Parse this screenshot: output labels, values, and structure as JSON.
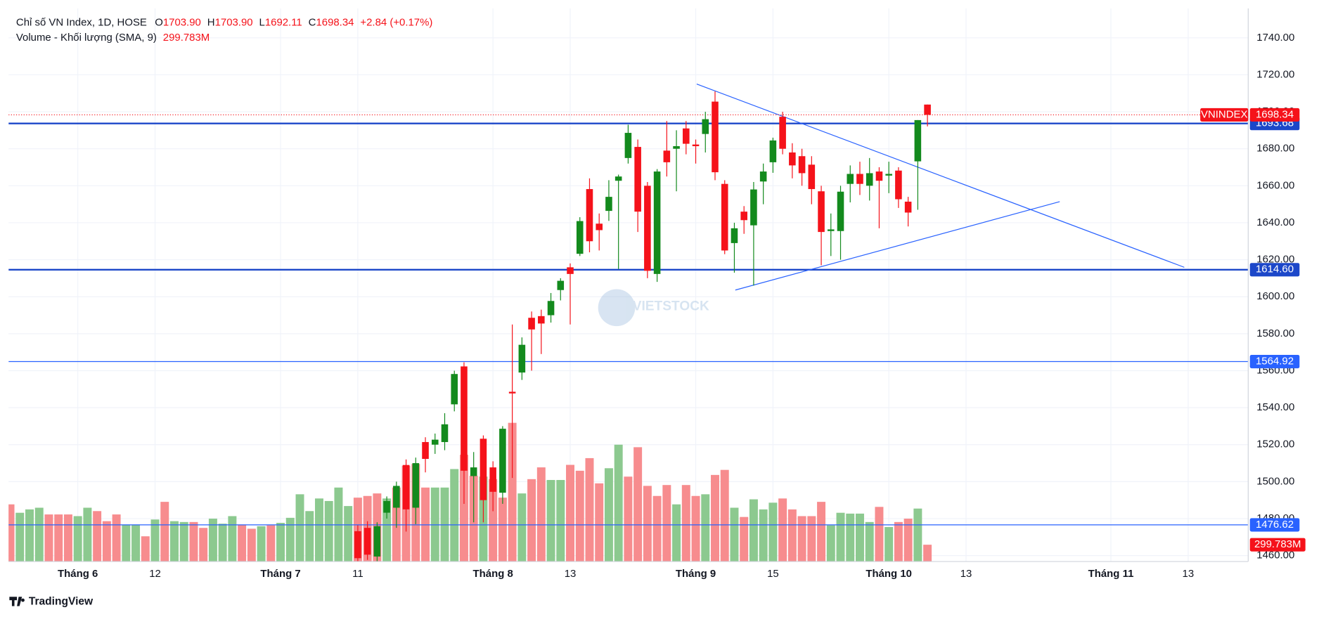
{
  "header": {
    "title": "Chỉ số VN Index, 1D, HOSE",
    "o_label": "O",
    "open": "1703.90",
    "h_label": "H",
    "high": "1703.90",
    "l_label": "L",
    "low": "1692.11",
    "c_label": "C",
    "close": "1698.34",
    "change": "+2.84 (+0.17%)",
    "volume_title": "Volume - Khối lượng (SMA, 9)",
    "volume_value": "299.783M"
  },
  "watermark": "VIETSTOCK",
  "footer": "TradingView",
  "chart_data": {
    "type": "candlestick",
    "symbol": "VNINDEX",
    "up_color": "#138a1d",
    "down_color": "#f5121a",
    "volume_up_color": "#8cc98f",
    "volume_down_color": "#f78c8e",
    "open": [
      null,
      null,
      null,
      null,
      null,
      null,
      null,
      null,
      null,
      null,
      null,
      null,
      null,
      null,
      null,
      null,
      null,
      null,
      null,
      null,
      null,
      null,
      null,
      null,
      null,
      null,
      null,
      null,
      null,
      null,
      null,
      null,
      null,
      null,
      null,
      null,
      1473.2,
      1475,
      1459.5,
      1483.2,
      1485.9,
      1509,
      1485.9,
      1521.4,
      1520,
      1521.4,
      1541.8,
      1562.3,
      1503,
      1523.2,
      1507.7,
      1494,
      1548.6,
      1559,
      1588.6,
      1589.5,
      1590,
      1603.6,
      1615.9,
      1623.2,
      1658.2,
      1639.5,
      1646.4,
      1662.7,
      1675,
      1681,
      1660,
      1612.3,
      1679,
      1680,
      1691,
      1682.3,
      1688,
      1705.5,
      1661,
      1629,
      1646,
      1638.6,
      1662.3,
      1672.7,
      1697.3,
      1678,
      1676,
      1671.4,
      1657,
      1635.5,
      1635.5,
      1661,
      1666.4,
      1660,
      1667.7,
      1665.5,
      1668.2,
      1651.4,
      1673.2,
      1703.9
    ],
    "high": [
      null,
      null,
      null,
      null,
      null,
      null,
      null,
      null,
      null,
      null,
      null,
      null,
      null,
      null,
      null,
      null,
      null,
      null,
      null,
      null,
      null,
      null,
      null,
      null,
      null,
      null,
      null,
      null,
      null,
      null,
      null,
      null,
      null,
      null,
      null,
      null,
      1476.4,
      1478.6,
      1478,
      1492,
      1500,
      1512,
      1513,
      1524,
      1526,
      1537,
      1560,
      1564.5,
      1516,
      1525,
      1511,
      1530,
      1585,
      1578,
      1592,
      1593,
      1602,
      1610,
      1618,
      1643,
      1664,
      1645,
      1663,
      1666,
      1693,
      1685,
      1662,
      1669,
      1695,
      1690,
      1695,
      1685,
      1700,
      1711,
      1663,
      1640,
      1649,
      1662,
      1672,
      1686,
      1700,
      1683,
      1680,
      1676,
      1660,
      1645,
      1660,
      1671,
      1673,
      1675,
      1670,
      1673,
      1670,
      1654,
      1695.5,
      1703.9
    ],
    "low": [
      null,
      null,
      null,
      null,
      null,
      null,
      null,
      null,
      null,
      null,
      null,
      null,
      null,
      null,
      null,
      null,
      null,
      null,
      null,
      null,
      null,
      null,
      null,
      null,
      null,
      null,
      null,
      null,
      null,
      null,
      null,
      null,
      null,
      null,
      null,
      null,
      1456.8,
      1457.7,
      1456,
      1480,
      1475,
      1473,
      1477,
      1505,
      1515,
      1517,
      1538,
      1488,
      1478,
      1478,
      1484,
      1488,
      1502,
      1555,
      1560,
      1569,
      1586,
      1598,
      1585,
      1622,
      1624,
      1625,
      1641,
      1615,
      1672,
      1635,
      1610,
      1608,
      1665,
      1657,
      1677,
      1672,
      1678,
      1663,
      1623,
      1613,
      1634,
      1606,
      1650,
      1667,
      1677,
      1664,
      1660,
      1650,
      1617,
      1622,
      1620,
      1651,
      1655,
      1652,
      1637,
      1656,
      1648,
      1638,
      1647,
      1692.11
    ],
    "close": [
      null,
      null,
      null,
      null,
      null,
      null,
      null,
      null,
      null,
      null,
      null,
      null,
      null,
      null,
      null,
      null,
      null,
      null,
      null,
      null,
      null,
      null,
      null,
      null,
      null,
      null,
      null,
      null,
      null,
      null,
      null,
      null,
      null,
      null,
      null,
      null,
      1458.6,
      1460.5,
      1475.9,
      1489.5,
      1497.7,
      1485,
      1510,
      1512.3,
      1522.7,
      1531,
      1558.2,
      1505.9,
      1507.7,
      1490,
      1494.5,
      1528.6,
      1547.7,
      1574,
      1582.3,
      1585.5,
      1597.7,
      1608.6,
      1612.3,
      1640.9,
      1630,
      1636,
      1654,
      1665,
      1688.6,
      1646,
      1614,
      1667.7,
      1672.7,
      1681.4,
      1682.7,
      1681.4,
      1696,
      1667.3,
      1625,
      1637,
      1641.4,
      1658,
      1667.7,
      1684.5,
      1680,
      1671,
      1666.8,
      1658.2,
      1635,
      1636.4,
      1656.8,
      1666.4,
      1661,
      1666.8,
      1662.7,
      1666.4,
      1652.7,
      1645.5,
      1695.5,
      1698.34
    ],
    "volume": [
      1020,
      870,
      930,
      960,
      840,
      840,
      840,
      810,
      960,
      900,
      720,
      840,
      660,
      660,
      450,
      750,
      1065,
      720,
      705,
      705,
      600,
      765,
      675,
      810,
      660,
      585,
      630,
      645,
      690,
      780,
      1200,
      900,
      1125,
      1080,
      1320,
      990,
      1140,
      1170,
      1215,
      1125,
      1320,
      1710,
      1740,
      1320,
      1320,
      1320,
      1650,
      1905,
      1530,
      1515,
      1470,
      1140,
      2475,
      1215,
      1470,
      1680,
      1455,
      1455,
      1725,
      1620,
      1845,
      1395,
      1665,
      2085,
      1515,
      2040,
      1350,
      1170,
      1365,
      1020,
      1365,
      1170,
      1200,
      1545,
      1635,
      960,
      795,
      1110,
      930,
      1050,
      1125,
      930,
      810,
      810,
      1065,
      645,
      870,
      855,
      855,
      705,
      975,
      615,
      705,
      765,
      945,
      299.783
    ],
    "volume_up": [
      false,
      true,
      true,
      true,
      false,
      false,
      false,
      true,
      true,
      false,
      false,
      false,
      true,
      true,
      false,
      true,
      false,
      true,
      true,
      false,
      false,
      true,
      true,
      true,
      false,
      false,
      true,
      false,
      true,
      true,
      true,
      true,
      true,
      true,
      true,
      true,
      false,
      false,
      false,
      true,
      false,
      false,
      false,
      false,
      true,
      true,
      true,
      false,
      false,
      true,
      false,
      false,
      false,
      true,
      false,
      false,
      true,
      true,
      false,
      false,
      false,
      false,
      true,
      true,
      false,
      false,
      false,
      false,
      false,
      true,
      false,
      false,
      true,
      false,
      false,
      true,
      false,
      true,
      true,
      true,
      false,
      false,
      false,
      false,
      false,
      true,
      true,
      true,
      true,
      true,
      false,
      true,
      false,
      false,
      true,
      false
    ],
    "volume_label": "299.783M",
    "ylim": [
      1456.8,
      1755.9
    ],
    "yticks": [
      {
        "value": 1460,
        "label": "1460.00"
      },
      {
        "value": 1480,
        "label": "1480.00"
      },
      {
        "value": 1500,
        "label": "1500.00"
      },
      {
        "value": 1520,
        "label": "1520.00"
      },
      {
        "value": 1540,
        "label": "1540.00"
      },
      {
        "value": 1560,
        "label": "1560.00"
      },
      {
        "value": 1580,
        "label": "1580.00"
      },
      {
        "value": 1600,
        "label": "1600.00"
      },
      {
        "value": 1620,
        "label": "1620.00"
      },
      {
        "value": 1640,
        "label": "1640.00"
      },
      {
        "value": 1660,
        "label": "1660.00"
      },
      {
        "value": 1680,
        "label": "1680.00"
      },
      {
        "value": 1700,
        "label": "1700.00"
      },
      {
        "value": 1720,
        "label": "1720.00"
      },
      {
        "value": 1740,
        "label": "1740.00"
      }
    ],
    "xticks": [
      {
        "value": 7,
        "label": "Tháng 6"
      },
      {
        "value": 15,
        "label": "12"
      },
      {
        "value": 28,
        "label": "Tháng 7"
      },
      {
        "value": 36,
        "label": "11"
      },
      {
        "value": 50,
        "label": "Tháng 8"
      },
      {
        "value": 58,
        "label": "13"
      },
      {
        "value": 71,
        "label": "Tháng 9"
      },
      {
        "value": 79,
        "label": "15"
      },
      {
        "value": 91,
        "label": "Tháng 10"
      },
      {
        "value": 99,
        "label": "13"
      },
      {
        "value": 114,
        "label": "Tháng 11"
      },
      {
        "value": 122,
        "label": "13"
      }
    ],
    "grid": true,
    "levels": [
      {
        "value": 1693.68,
        "label": "1693.68",
        "color": "#1c47c9",
        "width": 2
      },
      {
        "value": 1614.6,
        "label": "1614.60",
        "color": "#1c47c9",
        "width": 2
      },
      {
        "value": 1564.92,
        "label": "1564.92",
        "color": "#2962ff",
        "width": 1
      },
      {
        "value": 1476.62,
        "label": "1476.62",
        "color": "#2962ff",
        "width": 1
      }
    ],
    "last_price": {
      "value": 1698.34,
      "label": "1698.34",
      "color": "#f5121a"
    },
    "trend_lines": [
      {
        "color": "#2962ff",
        "points": [
          [
            71.1,
            1715
          ],
          [
            121.6,
            1615.9
          ]
        ]
      },
      {
        "color": "#2962ff",
        "points": [
          [
            75.1,
            1603.6
          ],
          [
            108.7,
            1651.4
          ]
        ]
      }
    ]
  }
}
